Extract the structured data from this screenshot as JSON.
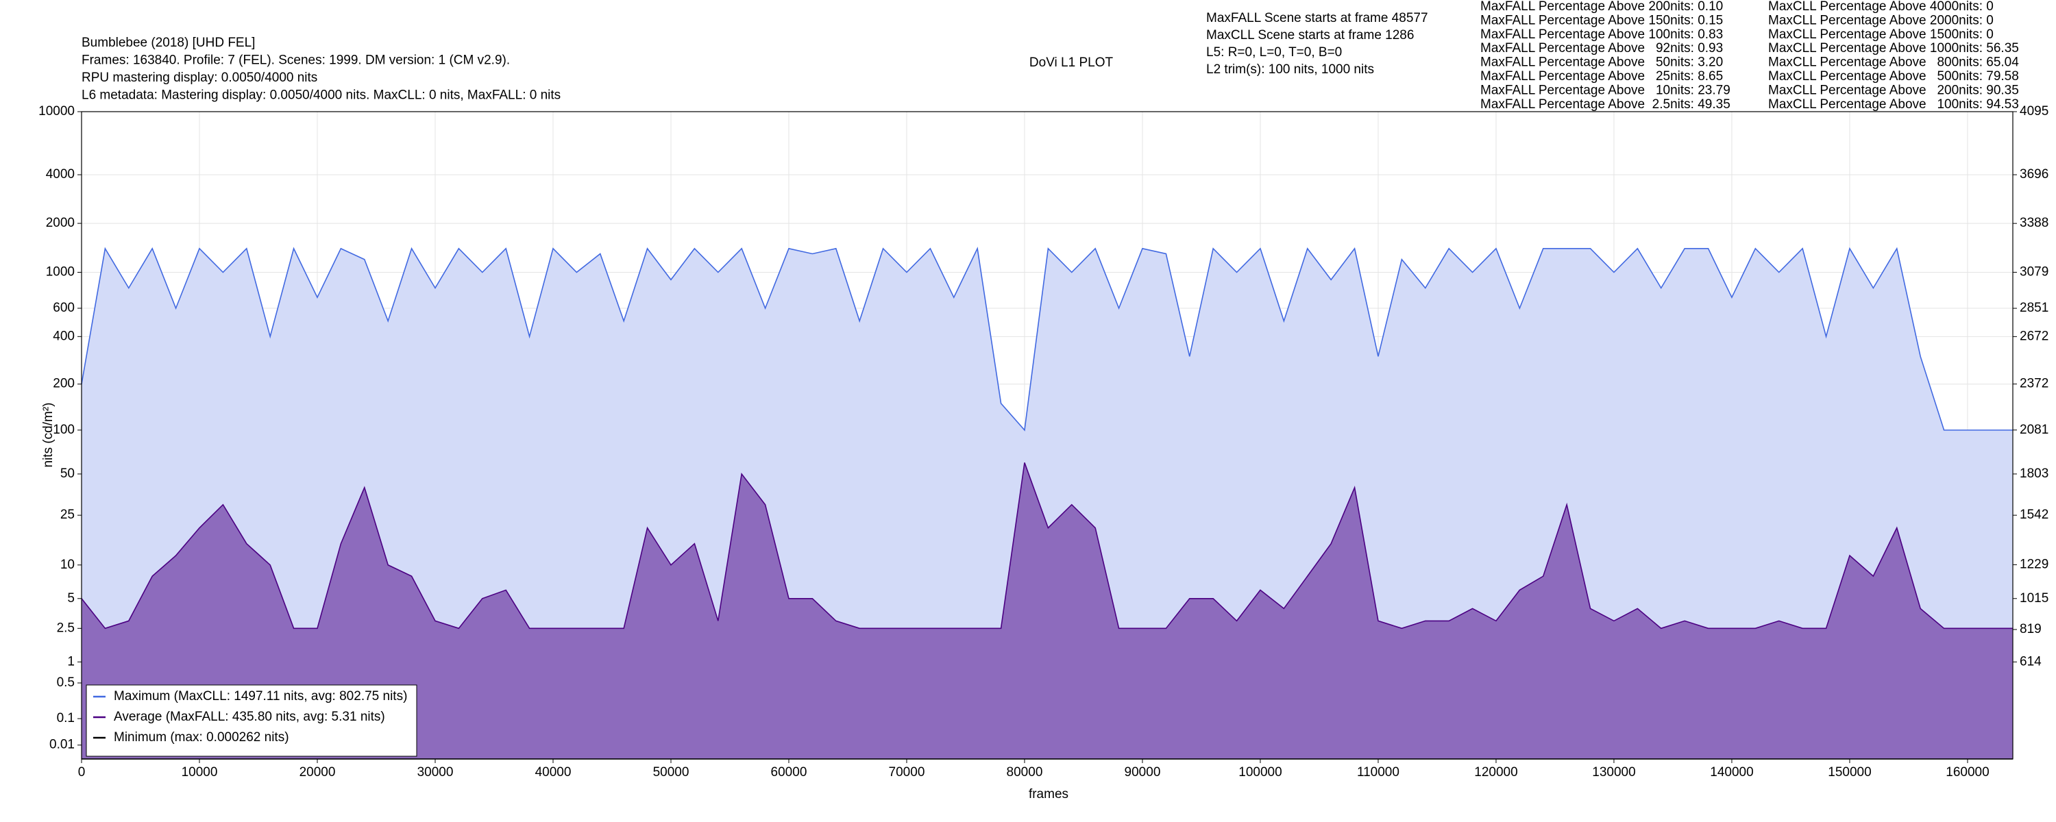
{
  "chart_data": {
    "type": "line",
    "title": "DoVi L1 PLOT",
    "info_lines": [
      "Bumblebee (2018) [UHD FEL]",
      "Frames: 163840. Profile: 7 (FEL). Scenes: 1999. DM version: 1 (CM v2.9).",
      "RPU mastering display: 0.0050/4000 nits",
      "L6 metadata: Mastering display: 0.0050/4000 nits. MaxCLL: 0 nits, MaxFALL: 0 nits"
    ],
    "scene_lines": [
      "MaxFALL Scene starts at frame 48577",
      "MaxCLL Scene starts at frame 1286",
      "L5: R=0, L=0, T=0, B=0",
      "L2 trim(s): 100 nits, 1000 nits"
    ],
    "fall_percentages": [
      "MaxFALL Percentage Above 200nits: 0.10",
      "MaxFALL Percentage Above 150nits: 0.15",
      "MaxFALL Percentage Above 100nits: 0.83",
      "MaxFALL Percentage Above   92nits: 0.93",
      "MaxFALL Percentage Above   50nits: 3.20",
      "MaxFALL Percentage Above   25nits: 8.65",
      "MaxFALL Percentage Above   10nits: 23.79",
      "MaxFALL Percentage Above  2.5nits: 49.35"
    ],
    "cll_percentages": [
      "MaxCLL Percentage Above 4000nits: 0",
      "MaxCLL Percentage Above 2000nits: 0",
      "MaxCLL Percentage Above 1500nits: 0",
      "MaxCLL Percentage Above 1000nits: 56.35",
      "MaxCLL Percentage Above   800nits: 65.04",
      "MaxCLL Percentage Above   500nits: 79.58",
      "MaxCLL Percentage Above   200nits: 90.35",
      "MaxCLL Percentage Above   100nits: 94.53"
    ],
    "x_label": "frames",
    "y_label": "nits (cd/m²)",
    "yscale": "pq",
    "grid": true,
    "legend": "lower left",
    "xlim": [
      0,
      163840
    ],
    "xticks": [
      0,
      10000,
      20000,
      30000,
      40000,
      50000,
      60000,
      70000,
      80000,
      90000,
      100000,
      110000,
      120000,
      130000,
      140000,
      150000,
      160000
    ],
    "ylim": [
      0,
      10000
    ],
    "yticks": [
      0.01,
      0.1,
      0.5,
      1,
      2.5,
      5,
      10,
      25,
      50,
      100,
      200,
      400,
      600,
      1000,
      2000,
      4000,
      10000
    ],
    "y2lim": [
      0,
      4095
    ],
    "y2ticks": [
      614,
      819,
      1015,
      1229,
      1542,
      1803,
      2081,
      2372,
      2672,
      2851,
      3079,
      3388,
      3696,
      4095
    ],
    "x": [
      0,
      2000,
      4000,
      6000,
      8000,
      10000,
      12000,
      14000,
      16000,
      18000,
      20000,
      22000,
      24000,
      26000,
      28000,
      30000,
      32000,
      34000,
      36000,
      38000,
      40000,
      42000,
      44000,
      46000,
      48000,
      50000,
      52000,
      54000,
      56000,
      58000,
      60000,
      62000,
      64000,
      66000,
      68000,
      70000,
      72000,
      74000,
      76000,
      78000,
      80000,
      82000,
      84000,
      86000,
      88000,
      90000,
      92000,
      94000,
      96000,
      98000,
      100000,
      102000,
      104000,
      106000,
      108000,
      110000,
      112000,
      114000,
      116000,
      118000,
      120000,
      122000,
      124000,
      126000,
      128000,
      130000,
      132000,
      134000,
      136000,
      138000,
      140000,
      142000,
      144000,
      146000,
      148000,
      150000,
      152000,
      154000,
      156000,
      158000,
      160000,
      162000,
      163840
    ],
    "series": [
      {
        "name": "Maximum (MaxCLL: 1497.11 nits, avg: 802.75 nits)",
        "color": "#4169e1",
        "fill": "#d3dbf8",
        "values": [
          200,
          1400,
          800,
          1400,
          600,
          1400,
          1000,
          1400,
          400,
          1400,
          700,
          1400,
          1200,
          500,
          1400,
          800,
          1400,
          1000,
          1400,
          400,
          1400,
          1000,
          1300,
          500,
          1400,
          900,
          1400,
          1000,
          1400,
          600,
          1400,
          1300,
          1400,
          500,
          1400,
          1000,
          1400,
          700,
          1400,
          150,
          100,
          1400,
          1000,
          1400,
          600,
          1400,
          1300,
          300,
          1400,
          1000,
          1400,
          500,
          1400,
          900,
          1400,
          300,
          1200,
          800,
          1400,
          1000,
          1400,
          600,
          1400,
          1400,
          1400,
          1000,
          1400,
          800,
          1400,
          1400,
          700,
          1400,
          1000,
          1400,
          400,
          1400,
          800,
          1400,
          300,
          100,
          100,
          100,
          100
        ]
      },
      {
        "name": "Average (MaxFALL: 435.80 nits, avg: 5.31 nits)",
        "color": "#4b0082",
        "fill": "#8d6bbd",
        "values": [
          5,
          2.5,
          3,
          8,
          12,
          20,
          30,
          15,
          10,
          2.5,
          2.5,
          15,
          40,
          10,
          8,
          3,
          2.5,
          5,
          6,
          2.5,
          2.5,
          2.5,
          2.5,
          2.5,
          20,
          10,
          15,
          3,
          50,
          30,
          5,
          5,
          3,
          2.5,
          2.5,
          2.5,
          2.5,
          2.5,
          2.5,
          2.5,
          60,
          20,
          30,
          20,
          2.5,
          2.5,
          2.5,
          5,
          5,
          3,
          6,
          4,
          8,
          15,
          40,
          3,
          2.5,
          3,
          3,
          4,
          3,
          6,
          8,
          30,
          4,
          3,
          4,
          2.5,
          3,
          2.5,
          2.5,
          2.5,
          3,
          2.5,
          2.5,
          12,
          8,
          20,
          4,
          2.5,
          2.5,
          2.5,
          2.5
        ]
      },
      {
        "name": "Minimum (max: 0.000262 nits)",
        "color": "#000000",
        "values": [
          0,
          0,
          0,
          0,
          0,
          0,
          0,
          0,
          0,
          0,
          0,
          0,
          0,
          0,
          0,
          0,
          0,
          0,
          0,
          0,
          0,
          0,
          0,
          0,
          0,
          0,
          0,
          0,
          0,
          0,
          0,
          0,
          0,
          0,
          0,
          0,
          0,
          0,
          0,
          0,
          0,
          0,
          0,
          0,
          0,
          0,
          0,
          0,
          0,
          0,
          0,
          0,
          0,
          0,
          0,
          0,
          0,
          0,
          0,
          0,
          0,
          0,
          0,
          0,
          0,
          0,
          0,
          0,
          0,
          0,
          0,
          0,
          0,
          0,
          0,
          0,
          0,
          0,
          0,
          0,
          0,
          0,
          0
        ]
      }
    ]
  }
}
